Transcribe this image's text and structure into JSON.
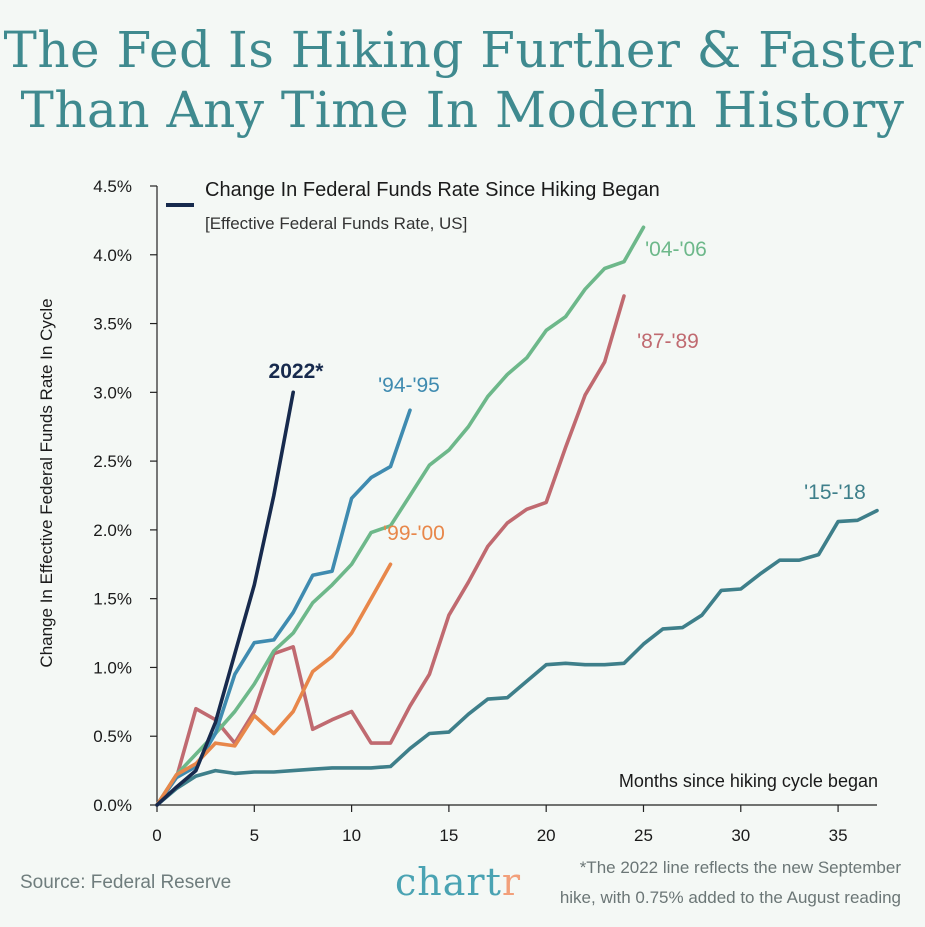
{
  "title_line1": "The Fed Is Hiking Further & Faster",
  "title_line2": "Than Any Time In Modern History",
  "source": "Source: Federal Reserve",
  "brand": {
    "main": "chart",
    "accent": "r"
  },
  "footnote_line1": "*The 2022 line reflects the new September",
  "footnote_line2": "hike, with 0.75% added to the August reading",
  "chart_data": {
    "type": "line",
    "title": "Change In Federal Funds Rate Since Hiking Began",
    "subtitle": "[Effective Federal Funds Rate, US]",
    "xlabel": "Months since hiking cycle began",
    "ylabel": "Change In Effective Federal Funds Rate In Cycle",
    "xlim": [
      0,
      37
    ],
    "ylim": [
      0,
      4.5
    ],
    "xticks": [
      0,
      5,
      10,
      15,
      20,
      25,
      30,
      35
    ],
    "xtick_labels": [
      "0",
      "5",
      "10",
      "15",
      "20",
      "25",
      "30",
      "35"
    ],
    "yticks": [
      0,
      0.5,
      1.0,
      1.5,
      2.0,
      2.5,
      3.0,
      3.5,
      4.0,
      4.5
    ],
    "ytick_labels": [
      "0.0%",
      "0.5%",
      "1.0%",
      "1.5%",
      "2.0%",
      "2.5%",
      "3.0%",
      "3.5%",
      "4.0%",
      "4.5%"
    ],
    "grid": false,
    "series": [
      {
        "name": "'15-'18",
        "color": "#3e7f8a",
        "x": [
          0,
          1,
          2,
          3,
          4,
          5,
          6,
          7,
          8,
          9,
          10,
          11,
          12,
          13,
          14,
          15,
          16,
          17,
          18,
          19,
          20,
          21,
          22,
          23,
          24,
          25,
          26,
          27,
          28,
          29,
          30,
          31,
          32,
          33,
          34,
          35,
          36,
          37
        ],
        "y": [
          0,
          0.12,
          0.21,
          0.25,
          0.23,
          0.24,
          0.24,
          0.25,
          0.26,
          0.27,
          0.27,
          0.27,
          0.28,
          0.41,
          0.52,
          0.53,
          0.66,
          0.77,
          0.78,
          0.9,
          1.02,
          1.03,
          1.02,
          1.02,
          1.03,
          1.17,
          1.28,
          1.29,
          1.38,
          1.56,
          1.57,
          1.68,
          1.78,
          1.78,
          1.82,
          2.06,
          2.07,
          2.14
        ]
      },
      {
        "name": "'87-'89",
        "color": "#c06a70",
        "x": [
          0,
          1,
          2,
          3,
          4,
          5,
          6,
          7,
          8,
          9,
          10,
          11,
          12,
          13,
          14,
          15,
          16,
          17,
          18,
          19,
          20,
          21,
          22,
          23,
          24
        ],
        "y": [
          0,
          0.2,
          0.7,
          0.62,
          0.45,
          0.68,
          1.1,
          1.15,
          0.55,
          0.62,
          0.68,
          0.45,
          0.45,
          0.72,
          0.95,
          1.38,
          1.62,
          1.88,
          2.05,
          2.15,
          2.2,
          2.6,
          2.98,
          3.22,
          3.7
        ]
      },
      {
        "name": "'04-'06",
        "color": "#6db88a",
        "x": [
          0,
          1,
          2,
          3,
          4,
          5,
          6,
          7,
          8,
          9,
          10,
          11,
          12,
          13,
          14,
          15,
          16,
          17,
          18,
          19,
          20,
          21,
          22,
          23,
          24,
          25
        ],
        "y": [
          0,
          0.22,
          0.37,
          0.52,
          0.68,
          0.88,
          1.12,
          1.25,
          1.47,
          1.6,
          1.75,
          1.98,
          2.03,
          2.25,
          2.47,
          2.58,
          2.75,
          2.97,
          3.13,
          3.25,
          3.45,
          3.55,
          3.75,
          3.9,
          3.95,
          4.2
        ]
      },
      {
        "name": "'94-'95",
        "color": "#3f8bb0",
        "x": [
          0,
          1,
          2,
          3,
          4,
          5,
          6,
          7,
          8,
          9,
          10,
          11,
          12,
          13
        ],
        "y": [
          0,
          0.2,
          0.28,
          0.52,
          0.95,
          1.18,
          1.2,
          1.4,
          1.67,
          1.7,
          2.23,
          2.38,
          2.46,
          2.87
        ]
      },
      {
        "name": "'99-'00",
        "color": "#e8874a",
        "x": [
          0,
          1,
          2,
          3,
          4,
          5,
          6,
          7,
          8,
          9,
          10,
          11,
          12
        ],
        "y": [
          0,
          0.22,
          0.3,
          0.45,
          0.43,
          0.65,
          0.52,
          0.68,
          0.97,
          1.08,
          1.25,
          1.5,
          1.75
        ]
      },
      {
        "name": "2022*",
        "color": "#172a4d",
        "x": [
          0,
          1,
          2,
          3,
          4,
          5,
          6,
          7
        ],
        "y": [
          0,
          0.13,
          0.25,
          0.6,
          1.1,
          1.6,
          2.25,
          3.0
        ]
      }
    ]
  }
}
